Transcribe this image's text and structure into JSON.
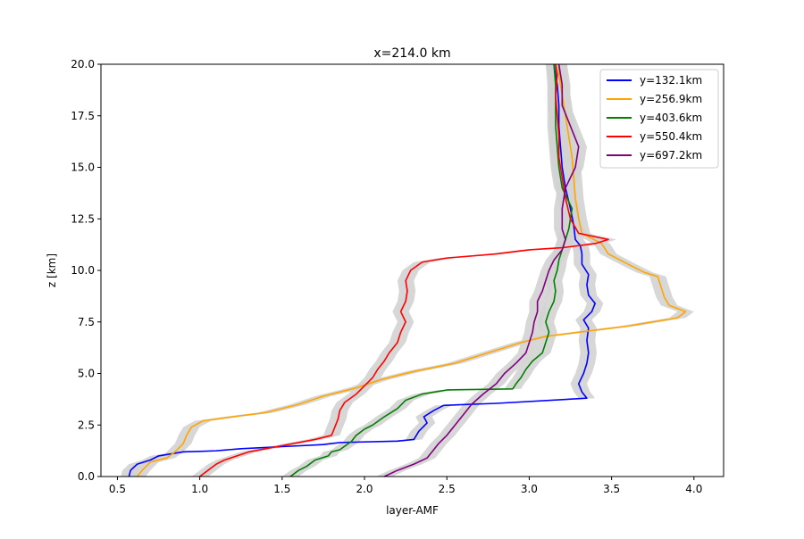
{
  "chart_data": {
    "type": "line",
    "title": "x=214.0 km",
    "xlabel": "layer-AMF",
    "ylabel": "z [km]",
    "xlim": [
      0.4,
      4.18
    ],
    "ylim": [
      0,
      20
    ],
    "xticks": [
      0.5,
      1.0,
      1.5,
      2.0,
      2.5,
      3.0,
      3.5,
      4.0
    ],
    "xtick_labels": [
      "0.5",
      "1.0",
      "1.5",
      "2.0",
      "2.5",
      "3.0",
      "3.5",
      "4.0"
    ],
    "yticks": [
      0,
      2.5,
      5,
      7.5,
      10,
      12.5,
      15,
      17.5,
      20
    ],
    "ytick_labels": [
      "0.0",
      "2.5",
      "5.0",
      "7.5",
      "10.0",
      "12.5",
      "15.0",
      "17.5",
      "20.0"
    ],
    "grid": false,
    "legend_position": "upper right",
    "uncertainty_band_color": "#d3d3d3",
    "series": [
      {
        "name": "y=132.1km",
        "color": "#0000ff",
        "points": [
          [
            0.57,
            0
          ],
          [
            0.58,
            0.3
          ],
          [
            0.62,
            0.6
          ],
          [
            0.7,
            0.8
          ],
          [
            0.75,
            1.0
          ],
          [
            0.9,
            1.2
          ],
          [
            1.0,
            1.22
          ],
          [
            1.1,
            1.25
          ],
          [
            1.25,
            1.35
          ],
          [
            1.5,
            1.45
          ],
          [
            1.75,
            1.55
          ],
          [
            1.85,
            1.65
          ],
          [
            2.2,
            1.72
          ],
          [
            2.3,
            1.8
          ],
          [
            2.33,
            2.2
          ],
          [
            2.38,
            2.6
          ],
          [
            2.36,
            2.9
          ],
          [
            2.42,
            3.2
          ],
          [
            2.48,
            3.45
          ],
          [
            2.8,
            3.55
          ],
          [
            3.35,
            3.8
          ],
          [
            3.32,
            4.1
          ],
          [
            3.3,
            4.5
          ],
          [
            3.33,
            5.0
          ],
          [
            3.35,
            5.5
          ],
          [
            3.36,
            6.0
          ],
          [
            3.35,
            6.6
          ],
          [
            3.36,
            7.2
          ],
          [
            3.33,
            7.6
          ],
          [
            3.38,
            8.0
          ],
          [
            3.4,
            8.4
          ],
          [
            3.36,
            8.8
          ],
          [
            3.35,
            9.3
          ],
          [
            3.36,
            9.8
          ],
          [
            3.32,
            10.3
          ],
          [
            3.32,
            10.8
          ],
          [
            3.31,
            11.2
          ],
          [
            3.28,
            11.5
          ],
          [
            3.27,
            12.2
          ],
          [
            3.25,
            13.0
          ],
          [
            3.22,
            14.0
          ],
          [
            3.2,
            15.0
          ],
          [
            3.19,
            16.0
          ],
          [
            3.18,
            17.0
          ],
          [
            3.18,
            18.0
          ],
          [
            3.17,
            19.0
          ],
          [
            3.15,
            20.0
          ]
        ]
      },
      {
        "name": "y=256.9km",
        "color": "#ffa500",
        "points": [
          [
            0.62,
            0
          ],
          [
            0.65,
            0.3
          ],
          [
            0.7,
            0.7
          ],
          [
            0.8,
            0.9
          ],
          [
            0.85,
            1.2
          ],
          [
            0.9,
            1.6
          ],
          [
            0.92,
            2.0
          ],
          [
            0.95,
            2.4
          ],
          [
            1.02,
            2.7
          ],
          [
            1.2,
            2.9
          ],
          [
            1.4,
            3.1
          ],
          [
            1.6,
            3.5
          ],
          [
            1.75,
            3.9
          ],
          [
            1.95,
            4.3
          ],
          [
            2.1,
            4.7
          ],
          [
            2.3,
            5.1
          ],
          [
            2.55,
            5.5
          ],
          [
            2.75,
            6.0
          ],
          [
            2.95,
            6.5
          ],
          [
            3.1,
            6.8
          ],
          [
            3.3,
            7.0
          ],
          [
            3.6,
            7.3
          ],
          [
            3.9,
            7.7
          ],
          [
            3.95,
            8.0
          ],
          [
            3.85,
            8.3
          ],
          [
            3.82,
            8.7
          ],
          [
            3.8,
            9.2
          ],
          [
            3.78,
            9.7
          ],
          [
            3.7,
            9.9
          ],
          [
            3.6,
            10.3
          ],
          [
            3.48,
            10.8
          ],
          [
            3.44,
            11.3
          ],
          [
            3.32,
            11.8
          ],
          [
            3.3,
            12.5
          ],
          [
            3.28,
            13.5
          ],
          [
            3.27,
            14.5
          ],
          [
            3.26,
            15.5
          ],
          [
            3.24,
            16.5
          ],
          [
            3.22,
            17.5
          ],
          [
            3.2,
            18.5
          ],
          [
            3.18,
            19.5
          ],
          [
            3.18,
            20.0
          ]
        ]
      },
      {
        "name": "y=403.6km",
        "color": "#008000",
        "points": [
          [
            1.55,
            0
          ],
          [
            1.6,
            0.3
          ],
          [
            1.65,
            0.5
          ],
          [
            1.7,
            0.8
          ],
          [
            1.78,
            1.0
          ],
          [
            1.8,
            1.2
          ],
          [
            1.85,
            1.3
          ],
          [
            1.92,
            1.7
          ],
          [
            1.95,
            2.0
          ],
          [
            2.0,
            2.3
          ],
          [
            2.05,
            2.5
          ],
          [
            2.12,
            2.9
          ],
          [
            2.2,
            3.3
          ],
          [
            2.25,
            3.7
          ],
          [
            2.35,
            4.0
          ],
          [
            2.5,
            4.2
          ],
          [
            2.9,
            4.25
          ],
          [
            2.92,
            4.5
          ],
          [
            2.95,
            4.8
          ],
          [
            2.98,
            5.2
          ],
          [
            3.02,
            5.6
          ],
          [
            3.08,
            6.0
          ],
          [
            3.1,
            6.5
          ],
          [
            3.12,
            7.0
          ],
          [
            3.1,
            7.5
          ],
          [
            3.12,
            8.0
          ],
          [
            3.15,
            8.5
          ],
          [
            3.16,
            9.0
          ],
          [
            3.15,
            9.5
          ],
          [
            3.17,
            10.0
          ],
          [
            3.18,
            10.5
          ],
          [
            3.2,
            11.0
          ],
          [
            3.22,
            11.5
          ],
          [
            3.24,
            12.0
          ],
          [
            3.26,
            13.0
          ],
          [
            3.2,
            14.0
          ],
          [
            3.18,
            15.0
          ],
          [
            3.17,
            16.0
          ],
          [
            3.16,
            17.0
          ],
          [
            3.16,
            18.0
          ],
          [
            3.16,
            19.0
          ],
          [
            3.15,
            20.0
          ]
        ]
      },
      {
        "name": "y=550.4km",
        "color": "#ff0000",
        "points": [
          [
            1.0,
            0
          ],
          [
            1.05,
            0.3
          ],
          [
            1.1,
            0.6
          ],
          [
            1.15,
            0.8
          ],
          [
            1.3,
            1.2
          ],
          [
            1.5,
            1.5
          ],
          [
            1.7,
            1.8
          ],
          [
            1.8,
            2.0
          ],
          [
            1.82,
            2.4
          ],
          [
            1.84,
            2.8
          ],
          [
            1.85,
            3.2
          ],
          [
            1.88,
            3.6
          ],
          [
            1.95,
            4.0
          ],
          [
            2.0,
            4.4
          ],
          [
            2.05,
            4.8
          ],
          [
            2.08,
            5.2
          ],
          [
            2.12,
            5.6
          ],
          [
            2.15,
            6.0
          ],
          [
            2.2,
            6.5
          ],
          [
            2.22,
            7.0
          ],
          [
            2.25,
            7.5
          ],
          [
            2.22,
            8.0
          ],
          [
            2.25,
            8.5
          ],
          [
            2.26,
            9.0
          ],
          [
            2.25,
            9.5
          ],
          [
            2.28,
            10.0
          ],
          [
            2.35,
            10.4
          ],
          [
            2.5,
            10.6
          ],
          [
            2.8,
            10.8
          ],
          [
            3.0,
            11.0
          ],
          [
            3.2,
            11.1
          ],
          [
            3.4,
            11.3
          ],
          [
            3.48,
            11.5
          ],
          [
            3.3,
            11.8
          ],
          [
            3.25,
            12.5
          ],
          [
            3.22,
            13.5
          ],
          [
            3.2,
            14.5
          ],
          [
            3.18,
            15.5
          ],
          [
            3.18,
            16.5
          ],
          [
            3.17,
            17.5
          ],
          [
            3.16,
            18.5
          ],
          [
            3.17,
            19.5
          ],
          [
            3.16,
            20.0
          ]
        ]
      },
      {
        "name": "y=697.2km",
        "color": "#800080",
        "points": [
          [
            2.12,
            0
          ],
          [
            2.2,
            0.3
          ],
          [
            2.3,
            0.6
          ],
          [
            2.38,
            0.9
          ],
          [
            2.42,
            1.3
          ],
          [
            2.45,
            1.6
          ],
          [
            2.5,
            2.0
          ],
          [
            2.55,
            2.5
          ],
          [
            2.6,
            3.0
          ],
          [
            2.65,
            3.5
          ],
          [
            2.72,
            4.0
          ],
          [
            2.8,
            4.5
          ],
          [
            2.85,
            5.0
          ],
          [
            2.92,
            5.5
          ],
          [
            2.98,
            6.0
          ],
          [
            3.0,
            6.5
          ],
          [
            3.02,
            7.0
          ],
          [
            3.03,
            7.5
          ],
          [
            3.05,
            8.0
          ],
          [
            3.05,
            8.5
          ],
          [
            3.08,
            9.0
          ],
          [
            3.1,
            9.5
          ],
          [
            3.12,
            10.0
          ],
          [
            3.15,
            10.5
          ],
          [
            3.2,
            11.0
          ],
          [
            3.22,
            11.5
          ],
          [
            3.2,
            12.0
          ],
          [
            3.2,
            13.0
          ],
          [
            3.22,
            14.0
          ],
          [
            3.28,
            15.0
          ],
          [
            3.3,
            16.0
          ],
          [
            3.25,
            17.0
          ],
          [
            3.2,
            18.0
          ],
          [
            3.2,
            19.0
          ],
          [
            3.18,
            20.0
          ]
        ]
      }
    ]
  }
}
